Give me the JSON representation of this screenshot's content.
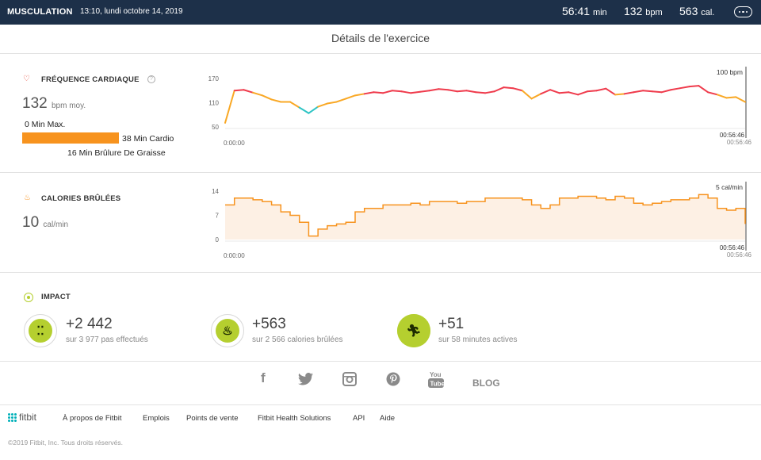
{
  "header": {
    "activity": "MUSCULATION",
    "datetime": "13:10, lundi octobre 14, 2019",
    "duration_value": "56:41",
    "duration_unit": "min",
    "bpm_value": "132",
    "bpm_unit": "bpm",
    "cal_value": "563",
    "cal_unit": "cal."
  },
  "page_title": "Détails de l'exercice",
  "heart": {
    "title": "FRÉQUENCE CARDIAQUE",
    "help": "?",
    "value": "132",
    "unit": "bpm moy.",
    "zones": [
      {
        "label": "0 Min Max.",
        "minutes": 0
      },
      {
        "label": "38 Min Cardio",
        "minutes": 38
      },
      {
        "label": "16 Min Brûlure De Graisse",
        "minutes": 16
      }
    ]
  },
  "calories": {
    "title": "CALORIES BRÛLÉES",
    "value": "10",
    "unit": "cal/min"
  },
  "impact": {
    "title": "IMPACT",
    "items": [
      {
        "value": "+2 442",
        "sub": "sur 3 977 pas effectués",
        "icon": "footsteps-icon"
      },
      {
        "value": "+563",
        "sub": "sur 2 566 calories brûlées",
        "icon": "flame-icon"
      },
      {
        "value": "+51",
        "sub": "sur 58 minutes actives",
        "icon": "running-person-icon"
      }
    ]
  },
  "social": {
    "facebook": "f",
    "blog": "BLOG"
  },
  "footer": {
    "logo": "fitbit",
    "links": [
      "À propos de Fitbit",
      "Emplois",
      "Points de vente",
      "Fitbit Health Solutions",
      "API",
      "Aide"
    ],
    "copyright": "©2019 Fitbit, Inc. Tous droits réservés."
  },
  "colors": {
    "header_bg": "#1d3049",
    "cardio_orange": "#f7931e",
    "peak_red": "#ef3b4c",
    "fatburn_yellow": "#f9a825",
    "below_teal": "#2ec4c4",
    "impact_green": "#b5cf2f"
  },
  "chart_data": [
    {
      "type": "line",
      "name": "heart-rate",
      "yticks": [
        170,
        110,
        50
      ],
      "ylim": [
        50,
        170
      ],
      "max_label": "100 bpm",
      "x_start": "0:00:00",
      "x_end": [
        "00:56:46",
        "00:56:46"
      ],
      "x": [
        0,
        1,
        2,
        3,
        4,
        5,
        6,
        7,
        8,
        9,
        10,
        11,
        12,
        13,
        14,
        15,
        16,
        17,
        18,
        19,
        20,
        21,
        22,
        23,
        24,
        25,
        26,
        27,
        28,
        29,
        30,
        31,
        32,
        33,
        34,
        35,
        36,
        37,
        38,
        39,
        40,
        41,
        42,
        43,
        44,
        45,
        46,
        47,
        48,
        49,
        50,
        51,
        52,
        53,
        54,
        55,
        56
      ],
      "values": [
        60,
        140,
        142,
        135,
        128,
        118,
        112,
        112,
        98,
        84,
        100,
        108,
        112,
        120,
        128,
        132,
        136,
        134,
        140,
        138,
        134,
        137,
        140,
        144,
        142,
        138,
        140,
        136,
        134,
        138,
        148,
        146,
        140,
        120,
        132,
        142,
        134,
        136,
        130,
        138,
        140,
        145,
        130,
        132,
        136,
        140,
        138,
        136,
        142,
        146,
        150,
        152,
        136,
        130,
        122,
        124,
        112
      ]
    },
    {
      "type": "area",
      "name": "calories-per-minute",
      "yticks": [
        14,
        7,
        0
      ],
      "ylim": [
        0,
        14
      ],
      "max_label": "5 cal/min",
      "x_start": "0:00:00",
      "x_end": [
        "00:56:46",
        "00:56:46"
      ],
      "x": [
        0,
        1,
        2,
        3,
        4,
        5,
        6,
        7,
        8,
        9,
        10,
        11,
        12,
        13,
        14,
        15,
        16,
        17,
        18,
        19,
        20,
        21,
        22,
        23,
        24,
        25,
        26,
        27,
        28,
        29,
        30,
        31,
        32,
        33,
        34,
        35,
        36,
        37,
        38,
        39,
        40,
        41,
        42,
        43,
        44,
        45,
        46,
        47,
        48,
        49,
        50,
        51,
        52,
        53,
        54,
        55,
        56
      ],
      "values": [
        10,
        12,
        12,
        11.5,
        11,
        10,
        8,
        7,
        5,
        1,
        3,
        4,
        4.5,
        5,
        8,
        9,
        9,
        10,
        10,
        10,
        10.5,
        10,
        11,
        11,
        11,
        10.5,
        11,
        11,
        12,
        12,
        12,
        12,
        11.5,
        10,
        9,
        10,
        12,
        12,
        12.5,
        12.5,
        12,
        11.5,
        12.5,
        12,
        10.5,
        10,
        10.5,
        11,
        11.5,
        11.5,
        12,
        13,
        12,
        9,
        8.5,
        9,
        4.5
      ]
    }
  ]
}
